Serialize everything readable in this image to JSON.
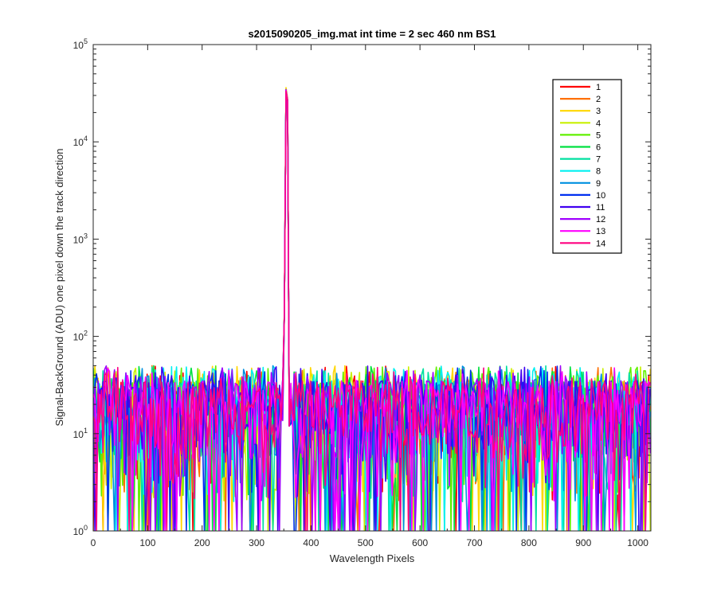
{
  "chart_data": {
    "type": "line",
    "title": "s2015090205_img.mat int time = 2 sec  460 nm BS1",
    "xlabel": "Wavelength Pixels",
    "ylabel": "Signal-BackGround (ADU) one pixel down the track direction",
    "xlim": [
      0,
      1024
    ],
    "ylim": [
      1,
      100000
    ],
    "yscale": "log",
    "grid": false,
    "legend_position": "top-right",
    "x_ticks": [
      0,
      100,
      200,
      300,
      400,
      500,
      600,
      700,
      800,
      900,
      1000
    ],
    "y_ticks": [
      {
        "value": 1,
        "base": "10",
        "exp": "0"
      },
      {
        "value": 10,
        "base": "10",
        "exp": "1"
      },
      {
        "value": 100,
        "base": "10",
        "exp": "2"
      },
      {
        "value": 1000,
        "base": "10",
        "exp": "3"
      },
      {
        "value": 10000,
        "base": "10",
        "exp": "4"
      },
      {
        "value": 100000,
        "base": "10",
        "exp": "5"
      }
    ],
    "peak": {
      "x": 355,
      "y": 42000
    },
    "noise": {
      "min": 1,
      "max": 50,
      "typical": 12
    },
    "series": [
      {
        "name": "1",
        "color": "#ff0000",
        "peak_y": 41000
      },
      {
        "name": "2",
        "color": "#ff7000",
        "peak_y": 42000
      },
      {
        "name": "3",
        "color": "#ffd700",
        "peak_y": 44000
      },
      {
        "name": "4",
        "color": "#c8f000",
        "peak_y": 42500
      },
      {
        "name": "5",
        "color": "#60f000",
        "peak_y": 41500
      },
      {
        "name": "6",
        "color": "#00e040",
        "peak_y": 41000
      },
      {
        "name": "7",
        "color": "#00e0a0",
        "peak_y": 40500
      },
      {
        "name": "8",
        "color": "#00f0f0",
        "peak_y": 40000
      },
      {
        "name": "9",
        "color": "#0090e0",
        "peak_y": 40500
      },
      {
        "name": "10",
        "color": "#0030f0",
        "peak_y": 41000
      },
      {
        "name": "11",
        "color": "#4000f0",
        "peak_y": 41500
      },
      {
        "name": "12",
        "color": "#a000ff",
        "peak_y": 42000
      },
      {
        "name": "13",
        "color": "#ff00ff",
        "peak_y": 41000
      },
      {
        "name": "14",
        "color": "#ff0080",
        "peak_y": 40500
      }
    ]
  }
}
